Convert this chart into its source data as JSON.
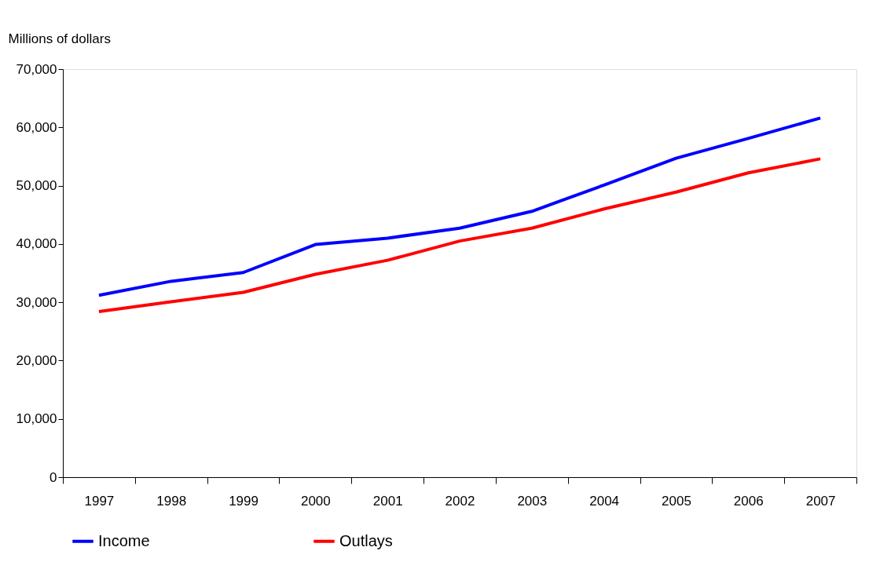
{
  "chart_data": {
    "type": "line",
    "ylabel": "Millions of dollars",
    "categories": [
      "1997",
      "1998",
      "1999",
      "2000",
      "2001",
      "2002",
      "2003",
      "2004",
      "2005",
      "2006",
      "2007"
    ],
    "series": [
      {
        "name": "Income",
        "color": "#0000ff",
        "values": [
          31200,
          33600,
          35100,
          39900,
          41000,
          42700,
          45600,
          50100,
          54700,
          58100,
          61600
        ]
      },
      {
        "name": "Outlays",
        "color": "#ff0000",
        "values": [
          28400,
          30100,
          31700,
          34800,
          37200,
          40500,
          42700,
          46000,
          48900,
          52200,
          54600
        ]
      }
    ],
    "ylim": [
      0,
      70000
    ],
    "yticks": [
      0,
      {
        "value": 10000,
        "label": "10,000"
      },
      {
        "value": 20000,
        "label": "20,000"
      },
      {
        "value": 30000,
        "label": "30,000"
      },
      {
        "value": 40000,
        "label": "40,000"
      },
      {
        "value": 50000,
        "label": "50,000"
      },
      {
        "value": 60000,
        "label": "60,000"
      },
      {
        "value": 70000,
        "label": "70,000"
      }
    ],
    "grid": false,
    "legend": "bottom",
    "marker": "none",
    "line_style": "solid"
  }
}
